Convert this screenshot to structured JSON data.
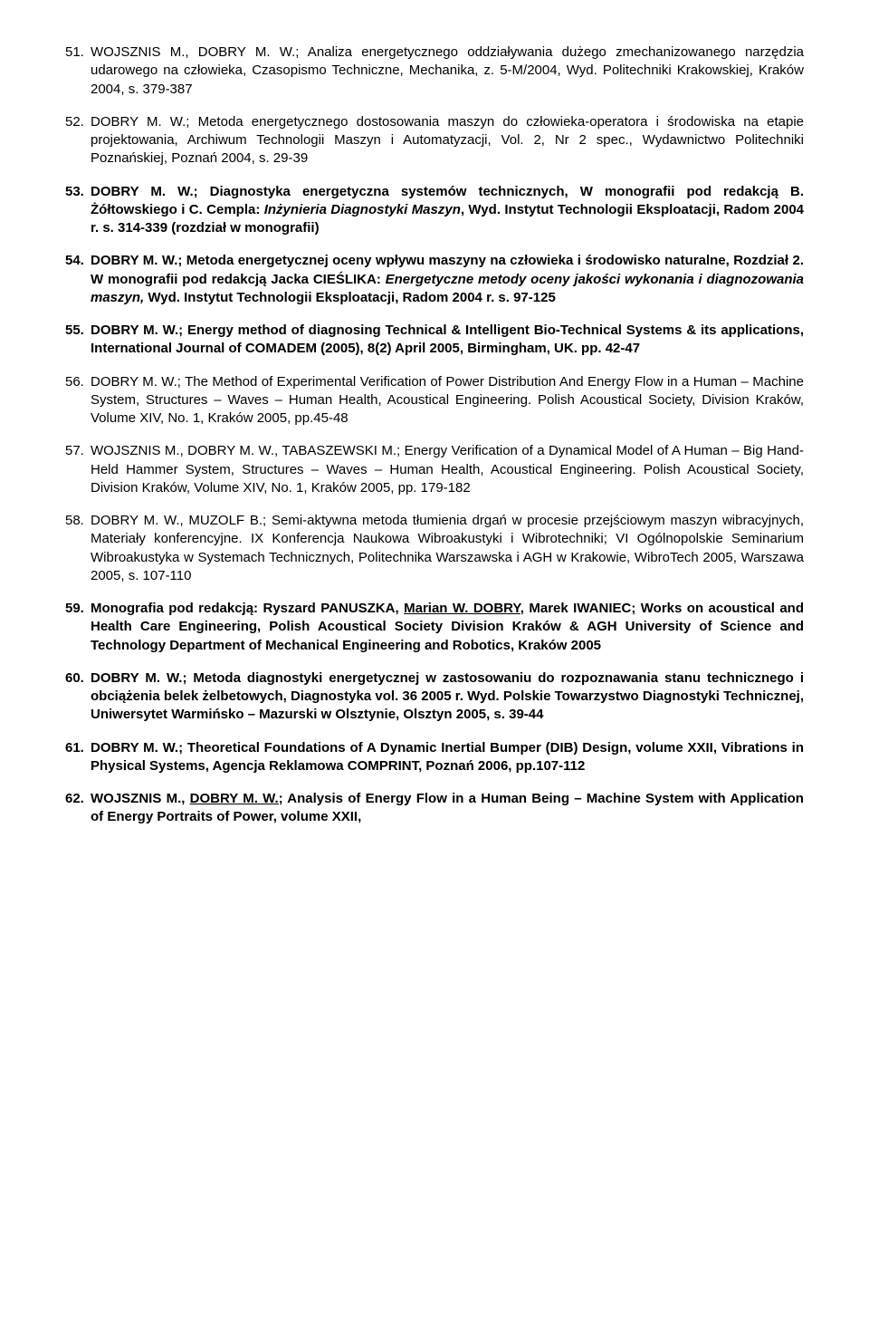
{
  "entries": [
    {
      "num": "51.",
      "segments": [
        {
          "t": "WOJSZNIS M., DOBRY M. W.;  Analiza energetycznego oddziaływania dużego zmechanizowanego narzędzia udarowego na człowieka, Czasopismo Techniczne, Mechanika, z. 5-M/2004, Wyd. Politechniki Krakowskiej, Kraków 2004, s. 379-387"
        }
      ]
    },
    {
      "num": "52.",
      "segments": [
        {
          "t": "DOBRY M. W.; Metoda energetycznego dostosowania maszyn do człowieka-operatora i środowiska na etapie projektowania, Archiwum Technologii Maszyn i Automatyzacji, Vol. 2, Nr 2 spec., Wydawnictwo Politechniki Poznańskiej, Poznań 2004, s. 29-39"
        }
      ]
    },
    {
      "num": "53.",
      "segments": [
        {
          "t": "DOBRY M. W.; Diagnostyka energetyczna systemów technicznych, W monografii pod redakcją B. Żółtowskiego i C. Cempla: ",
          "b": true
        },
        {
          "t": "Inżynieria Diagnostyki Maszyn",
          "b": true,
          "i": true
        },
        {
          "t": ", Wyd. Instytut Technologii Eksploatacji, Radom 2004 r. s. 314-339 (rozdział w monografii)",
          "b": true
        }
      ]
    },
    {
      "num": "54.",
      "segments": [
        {
          "t": "DOBRY M. W.; Metoda energetycznej oceny wpływu maszyny na człowieka i środowisko naturalne, Rozdział 2. W monografii pod redakcją Jacka CIEŚLIKA: ",
          "b": true
        },
        {
          "t": "Energetyczne metody oceny jakości wykonania i diagnozowania maszyn, ",
          "b": true,
          "i": true
        },
        {
          "t": "Wyd. Instytut Technologii Eksploatacji, Radom 2004 r. s. 97-125",
          "b": true
        }
      ]
    },
    {
      "num": "55.",
      "segments": [
        {
          "t": "DOBRY M. W.; Energy method of diagnosing Technical & Intelligent Bio-Technical Systems & its applications, International Journal of COMADEM (2005), 8(2) April 2005, Birmingham, UK. pp. 42-47",
          "b": true
        }
      ]
    },
    {
      "num": "56.",
      "segments": [
        {
          "t": "DOBRY M. W.; The Method of Experimental Verification of Power Distribution And Energy Flow in a Human – Machine System, Structures – Waves – Human Health, Acoustical Engineering. Polish Acoustical Society, Division Kraków, Volume XIV, No. 1, Kraków 2005, pp.45-48"
        }
      ]
    },
    {
      "num": "57.",
      "segments": [
        {
          "t": "WOJSZNIS M., DOBRY M. W., TABASZEWSKI M.; Energy Verification of a Dynamical Model of A Human – Big Hand-Held Hammer System, Structures – Waves – Human Health, Acoustical Engineering. Polish Acoustical Society, Division Kraków, Volume XIV, No. 1, Kraków 2005, pp. 179-182"
        }
      ]
    },
    {
      "num": "58.",
      "segments": [
        {
          "t": "DOBRY M. W., MUZOLF B.; Semi-aktywna metoda tłumienia drgań w procesie przejściowym maszyn wibracyjnych, Materiały konferencyjne. IX Konferencja Naukowa Wibroakustyki i Wibrotechniki; VI Ogólnopolskie Seminarium Wibroakustyka w Systemach Technicznych, Politechnika Warszawska i AGH w Krakowie, WibroTech 2005, Warszawa 2005, s. 107-110"
        }
      ]
    },
    {
      "num": "59.",
      "segments": [
        {
          "t": "Monografia pod redakcją: Ryszard PANUSZKA, ",
          "b": true
        },
        {
          "t": "Marian W. DOBRY",
          "b": true,
          "u": true
        },
        {
          "t": ", Marek IWANIEC",
          "b": true
        },
        {
          "t": ";",
          "b": true,
          "u": true
        },
        {
          "t": " Works on acoustical and Health Care Engineering, Polish Acoustical Society Division Kraków & AGH University of Science and Technology Department of Mechanical Engineering and Robotics, Kraków 2005",
          "b": true
        }
      ]
    },
    {
      "num": "60.",
      "segments": [
        {
          "t": "DOBRY M. W.; Metoda diagnostyki energetycznej w zastosowaniu do rozpoznawania stanu technicznego i obciążenia belek żelbetowych, Diagnostyka vol. 36 2005 r. Wyd. Polskie Towarzystwo Diagnostyki Technicznej, Uniwersytet Warmińsko – Mazurski w Olsztynie, Olsztyn 2005, s. 39-44",
          "b": true
        }
      ]
    },
    {
      "num": "61.",
      "segments": [
        {
          "t": "DOBRY M. W.; Theoretical Foundations of A Dynamic Inertial Bumper (DIB) Design, volume XXII, Vibrations in Physical Systems, Agencja Reklamowa COMPRINT, Poznań 2006, pp.107-112",
          "b": true
        }
      ]
    },
    {
      "num": "62.",
      "segments": [
        {
          "t": "WOJSZNIS M., ",
          "b": true
        },
        {
          "t": "DOBRY M. W.;",
          "b": true,
          "u": true
        },
        {
          "t": " Analysis of Energy Flow in a Human Being – Machine System with Application of Energy Portraits of Power, volume XXII,",
          "b": true
        }
      ]
    }
  ]
}
